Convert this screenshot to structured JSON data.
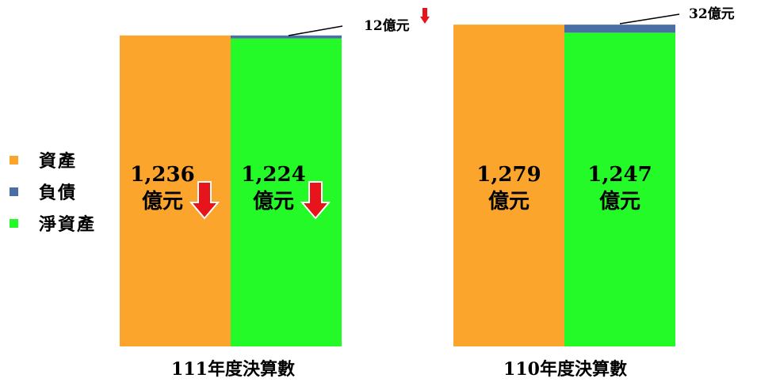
{
  "chart_data": {
    "type": "bar",
    "unit": "億元",
    "legend": [
      {
        "name": "資產",
        "color": "#FBA52C"
      },
      {
        "name": "負債",
        "color": "#4A6FA5"
      },
      {
        "name": "淨資產",
        "color": "#23FA27"
      }
    ],
    "groups": [
      {
        "category": "111年度決算數",
        "assets": 1236,
        "liabilities": 12,
        "net_assets": 1224,
        "assets_label": [
          "1,236",
          "億元"
        ],
        "net_assets_label": [
          "1,224",
          "億元"
        ],
        "liabilities_label": "12億元",
        "decrease_arrows": true
      },
      {
        "category": "110年度決算數",
        "assets": 1279,
        "liabilities": 32,
        "net_assets": 1247,
        "assets_label": [
          "1,279",
          "億元"
        ],
        "net_assets_label": [
          "1,247",
          "億元"
        ],
        "liabilities_label": "32億元",
        "decrease_arrows": false
      }
    ],
    "decrease_arrow_color": "#E8141B"
  }
}
